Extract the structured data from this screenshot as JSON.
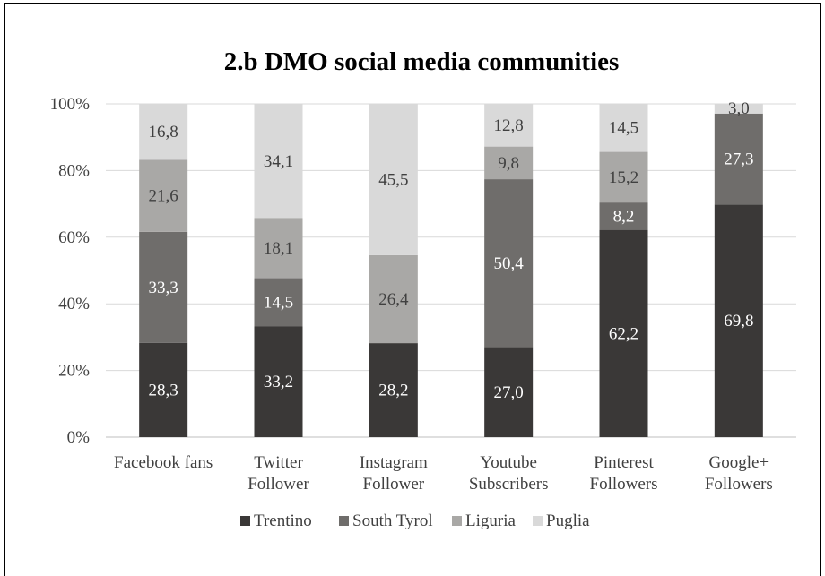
{
  "chart_data": {
    "type": "bar",
    "stacked": true,
    "percent": true,
    "title": "2.b DMO social media communities",
    "xlabel": "",
    "ylabel": "",
    "ylim": [
      0,
      100
    ],
    "yticks": [
      "0%",
      "20%",
      "40%",
      "60%",
      "80%",
      "100%"
    ],
    "categories": [
      [
        "Facebook fans"
      ],
      [
        "Twitter",
        "Follower"
      ],
      [
        "Instagram",
        "Follower"
      ],
      [
        "Youtube",
        "Subscribers"
      ],
      [
        "Pinterest",
        "Followers"
      ],
      [
        "Google+",
        "Followers"
      ]
    ],
    "series": [
      {
        "name": "Trentino",
        "color": "#3a3837",
        "label_color": "#ffffff",
        "values": [
          28.3,
          33.2,
          28.2,
          27.0,
          62.2,
          69.8
        ],
        "labels": [
          "28,3",
          "33,2",
          "28,2",
          "27,0",
          "62,2",
          "69,8"
        ]
      },
      {
        "name": "South Tyrol",
        "color": "#6f6d6b",
        "label_color": "#ffffff",
        "values": [
          33.3,
          14.5,
          0,
          50.4,
          8.2,
          27.3
        ],
        "labels": [
          "33,3",
          "14,5",
          "",
          "50,4",
          "8,2",
          "27,3"
        ]
      },
      {
        "name": "Liguria",
        "color": "#a9a8a6",
        "label_color": "#404040",
        "values": [
          21.6,
          18.1,
          26.4,
          9.8,
          15.2,
          0
        ],
        "labels": [
          "21,6",
          "18,1",
          "26,4",
          "9,8",
          "15,2",
          ""
        ]
      },
      {
        "name": "Puglia",
        "color": "#d9d9d9",
        "label_color": "#404040",
        "values": [
          16.8,
          34.1,
          45.5,
          12.8,
          14.5,
          3.0
        ],
        "labels": [
          "16,8",
          "34,1",
          "45,5",
          "12,8",
          "14,5",
          "3,0"
        ]
      }
    ],
    "grid": true,
    "legend_position": "bottom"
  }
}
